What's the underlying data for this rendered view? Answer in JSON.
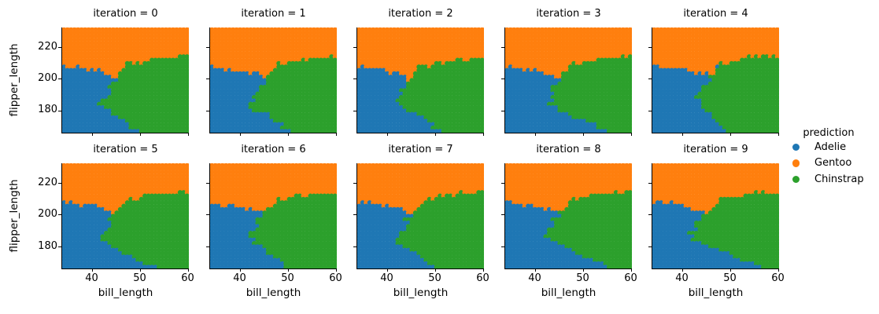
{
  "chart_data": {
    "type": "scatter",
    "subtype": "decision-boundary-mesh-facet-grid",
    "title": "",
    "xlabel": "bill_length",
    "ylabel": "flipper_length",
    "xticks": [
      40,
      50,
      60
    ],
    "yticks": [
      220,
      200,
      180
    ],
    "xtick_labels": [
      "40",
      "50",
      "60"
    ],
    "ytick_labels": [
      "220",
      "200",
      "180"
    ],
    "xlim": [
      33.8,
      60.2
    ],
    "ylim": [
      166.0,
      232.4
    ],
    "grid": false,
    "legend": {
      "title": "prediction",
      "position": "right",
      "entries": [
        "Adelie",
        "Gentoo",
        "Chinstrap"
      ]
    },
    "classes": [
      {
        "name": "Adelie",
        "color": "#1f77b4"
      },
      {
        "name": "Gentoo",
        "color": "#ff7f0e"
      },
      {
        "name": "Chinstrap",
        "color": "#2ca02c"
      }
    ],
    "facets": [
      {
        "title": "iteration = 0",
        "row": 0,
        "col": 0,
        "gentoo_boundary_xy": [
          [
            33.8,
            208
          ],
          [
            40,
            205.5
          ],
          [
            43,
            204
          ],
          [
            44.8,
            200.5
          ],
          [
            45.5,
            203
          ],
          [
            46.5,
            205
          ],
          [
            47.3,
            212
          ],
          [
            48,
            208.5
          ],
          [
            49.5,
            209.5
          ],
          [
            52,
            212
          ],
          [
            55,
            213.2
          ],
          [
            60.2,
            213.8
          ]
        ],
        "adelie_chinstrap_boundary_yx": [
          [
            166,
            48.8
          ],
          [
            171,
            47.5
          ],
          [
            175,
            45.5
          ],
          [
            178,
            44.2
          ],
          [
            181,
            43
          ],
          [
            184,
            41.8
          ],
          [
            188,
            42.8
          ],
          [
            192,
            43.5
          ],
          [
            196,
            44.6
          ],
          [
            200,
            44.3
          ],
          [
            205,
            46
          ],
          [
            213,
            47.2
          ],
          [
            232,
            47.5
          ]
        ]
      },
      {
        "title": "iteration = 1",
        "row": 0,
        "col": 1,
        "gentoo_boundary_xy": [
          [
            33.8,
            207.5
          ],
          [
            40,
            205
          ],
          [
            43.5,
            203.5
          ],
          [
            45,
            200.5
          ],
          [
            46,
            204
          ],
          [
            47,
            205.5
          ],
          [
            48.3,
            210.5
          ],
          [
            49,
            208
          ],
          [
            51,
            210
          ],
          [
            54,
            212.5
          ],
          [
            60.2,
            213
          ]
        ],
        "adelie_chinstrap_boundary_yx": [
          [
            166,
            50.5
          ],
          [
            172,
            48
          ],
          [
            176,
            46
          ],
          [
            179,
            44.5
          ],
          [
            182,
            42.5
          ],
          [
            186,
            43
          ],
          [
            190,
            43.2
          ],
          [
            194,
            44.8
          ],
          [
            199,
            45
          ],
          [
            204,
            46
          ],
          [
            212,
            47.5
          ],
          [
            232,
            48
          ]
        ]
      },
      {
        "title": "iteration = 2",
        "row": 0,
        "col": 2,
        "gentoo_boundary_xy": [
          [
            33.8,
            207.5
          ],
          [
            40,
            204.5
          ],
          [
            43,
            202.5
          ],
          [
            44.5,
            200
          ],
          [
            45.5,
            203.5
          ],
          [
            46.5,
            208
          ],
          [
            47,
            210.5
          ],
          [
            48,
            207.5
          ],
          [
            50,
            209.5
          ],
          [
            53,
            212
          ],
          [
            60.2,
            213.2
          ]
        ],
        "adelie_chinstrap_boundary_yx": [
          [
            166,
            51
          ],
          [
            172,
            48.5
          ],
          [
            177,
            46
          ],
          [
            180,
            43.5
          ],
          [
            183,
            41.5
          ],
          [
            187,
            41.8
          ],
          [
            191,
            42.5
          ],
          [
            195,
            43.8
          ],
          [
            200,
            44
          ],
          [
            205,
            45.5
          ],
          [
            212,
            46.5
          ],
          [
            232,
            47
          ]
        ]
      },
      {
        "title": "iteration = 3",
        "row": 0,
        "col": 3,
        "gentoo_boundary_xy": [
          [
            33.8,
            207
          ],
          [
            40,
            205
          ],
          [
            43.5,
            203
          ],
          [
            45,
            200
          ],
          [
            46,
            203.5
          ],
          [
            47,
            206
          ],
          [
            47.8,
            210
          ],
          [
            49,
            208.5
          ],
          [
            51.5,
            211
          ],
          [
            55,
            213
          ],
          [
            60.2,
            213.5
          ]
        ],
        "adelie_chinstrap_boundary_yx": [
          [
            166,
            57
          ],
          [
            170,
            53
          ],
          [
            174,
            49.5
          ],
          [
            178,
            46
          ],
          [
            181,
            44
          ],
          [
            185,
            43
          ],
          [
            189,
            43.5
          ],
          [
            193,
            44.2
          ],
          [
            198,
            44.6
          ],
          [
            203,
            45.5
          ],
          [
            212,
            47
          ],
          [
            232,
            47.5
          ]
        ]
      },
      {
        "title": "iteration = 4",
        "row": 0,
        "col": 4,
        "gentoo_boundary_xy": [
          [
            33.8,
            208
          ],
          [
            40,
            205.5
          ],
          [
            44,
            203
          ],
          [
            46,
            202.5
          ],
          [
            47,
            203
          ],
          [
            47.5,
            209
          ],
          [
            48.2,
            212
          ],
          [
            49,
            209
          ],
          [
            51,
            211
          ],
          [
            54,
            213.5
          ],
          [
            60.2,
            214.5
          ]
        ],
        "adelie_chinstrap_boundary_yx": [
          [
            166,
            50.5
          ],
          [
            171,
            48.5
          ],
          [
            175,
            46.5
          ],
          [
            179,
            44.5
          ],
          [
            183,
            43
          ],
          [
            187,
            43.5
          ],
          [
            191,
            44
          ],
          [
            195,
            44.5
          ],
          [
            199,
            46.3
          ],
          [
            204,
            46.5
          ],
          [
            212,
            47.8
          ],
          [
            232,
            48
          ]
        ]
      },
      {
        "title": "iteration = 5",
        "row": 1,
        "col": 0,
        "gentoo_boundary_xy": [
          [
            33.8,
            208.5
          ],
          [
            40,
            205.5
          ],
          [
            43,
            203.5
          ],
          [
            44.6,
            200.5
          ],
          [
            45.5,
            203
          ],
          [
            46.5,
            205
          ],
          [
            47.5,
            210.5
          ],
          [
            48.5,
            208.5
          ],
          [
            50.5,
            210.5
          ],
          [
            53.5,
            212.5
          ],
          [
            60.2,
            213.5
          ]
        ],
        "adelie_chinstrap_boundary_yx": [
          [
            166,
            53.5
          ],
          [
            171,
            50
          ],
          [
            175,
            47
          ],
          [
            179,
            44.8
          ],
          [
            183,
            43
          ],
          [
            186,
            41.5
          ],
          [
            190,
            43
          ],
          [
            194,
            44
          ],
          [
            198,
            44.5
          ],
          [
            203,
            45.5
          ],
          [
            212,
            47
          ],
          [
            232,
            47.5
          ]
        ]
      },
      {
        "title": "iteration = 6",
        "row": 1,
        "col": 1,
        "gentoo_boundary_xy": [
          [
            33.8,
            207
          ],
          [
            40,
            204.5
          ],
          [
            43.5,
            203
          ],
          [
            45,
            200.5
          ],
          [
            46,
            204
          ],
          [
            47,
            206.5
          ],
          [
            48,
            210
          ],
          [
            49.2,
            208.5
          ],
          [
            51,
            210.5
          ],
          [
            54,
            212.5
          ],
          [
            60.2,
            213
          ]
        ],
        "adelie_chinstrap_boundary_yx": [
          [
            166,
            50.5
          ],
          [
            171,
            48
          ],
          [
            175,
            46
          ],
          [
            179,
            44.3
          ],
          [
            183,
            42.5
          ],
          [
            187,
            42
          ],
          [
            191,
            43
          ],
          [
            195,
            44
          ],
          [
            199,
            44.3
          ],
          [
            204,
            45.5
          ],
          [
            212,
            47
          ],
          [
            232,
            47.5
          ]
        ]
      },
      {
        "title": "iteration = 7",
        "row": 1,
        "col": 2,
        "gentoo_boundary_xy": [
          [
            33.8,
            208.5
          ],
          [
            40,
            205.5
          ],
          [
            43.5,
            203.5
          ],
          [
            45.5,
            200
          ],
          [
            46.5,
            204
          ],
          [
            47.5,
            206
          ],
          [
            48.7,
            211.5
          ],
          [
            49.5,
            209
          ],
          [
            51,
            211
          ],
          [
            54.5,
            213
          ],
          [
            60.2,
            214
          ]
        ],
        "adelie_chinstrap_boundary_yx": [
          [
            166,
            50.3
          ],
          [
            171,
            48.5
          ],
          [
            175,
            46.5
          ],
          [
            179,
            44.5
          ],
          [
            183,
            41.8
          ],
          [
            186,
            41.5
          ],
          [
            190,
            43.5
          ],
          [
            194,
            44.3
          ],
          [
            198,
            44.5
          ],
          [
            203,
            45.5
          ],
          [
            212,
            47
          ],
          [
            232,
            47.5
          ]
        ]
      },
      {
        "title": "iteration = 8",
        "row": 1,
        "col": 3,
        "gentoo_boundary_xy": [
          [
            33.8,
            207.5
          ],
          [
            40,
            205
          ],
          [
            43.5,
            203
          ],
          [
            45,
            201
          ],
          [
            46.2,
            204
          ],
          [
            47.2,
            207
          ],
          [
            48.2,
            211
          ],
          [
            49.2,
            209
          ],
          [
            51.5,
            211.5
          ],
          [
            55,
            213
          ],
          [
            60.2,
            213.5
          ]
        ],
        "adelie_chinstrap_boundary_yx": [
          [
            166,
            56
          ],
          [
            170,
            53.5
          ],
          [
            174,
            50
          ],
          [
            178,
            46.5
          ],
          [
            182,
            44
          ],
          [
            186,
            42.5
          ],
          [
            190,
            43
          ],
          [
            194,
            43.8
          ],
          [
            198,
            44.3
          ],
          [
            203,
            45.5
          ],
          [
            212,
            47
          ],
          [
            232,
            47.5
          ]
        ]
      },
      {
        "title": "iteration = 9",
        "row": 1,
        "col": 4,
        "gentoo_boundary_xy": [
          [
            33.8,
            209
          ],
          [
            40,
            206
          ],
          [
            43.5,
            203
          ],
          [
            45.5,
            200.5
          ],
          [
            46.5,
            204
          ],
          [
            47.5,
            208
          ],
          [
            48.5,
            211.5
          ],
          [
            49.5,
            209.5
          ],
          [
            52,
            212
          ],
          [
            55,
            213.5
          ],
          [
            60.2,
            214
          ]
        ],
        "adelie_chinstrap_boundary_yx": [
          [
            166,
            57.5
          ],
          [
            170,
            54
          ],
          [
            174,
            50.5
          ],
          [
            178,
            47
          ],
          [
            182,
            44
          ],
          [
            185,
            41.5
          ],
          [
            189,
            42
          ],
          [
            193,
            43
          ],
          [
            197,
            43.5
          ],
          [
            202,
            44.5
          ],
          [
            212,
            46
          ],
          [
            232,
            46.5
          ]
        ]
      }
    ]
  }
}
